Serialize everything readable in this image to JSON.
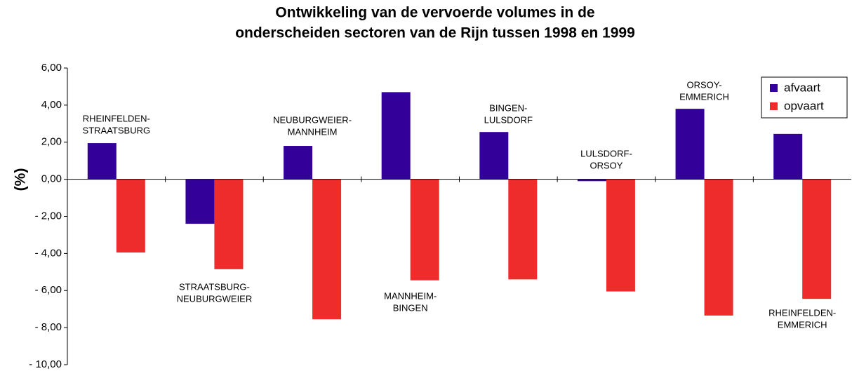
{
  "chart_data": {
    "type": "bar",
    "title": [
      "Ontwikkeling van de vervoerde volumes in de",
      "onderscheiden sectoren van de Rijn tussen 1998 en 1999"
    ],
    "y_label": "(%)",
    "categories": [
      [
        "RHEINFELDEN-",
        "STRAATSBURG"
      ],
      [
        "STRAATSBURG-",
        "NEUBURGWEIER"
      ],
      [
        "NEUBURGWEIER-",
        "MANNHEIM"
      ],
      [
        "MANNHEIM-",
        "BINGEN"
      ],
      [
        "BINGEN-",
        "LULSDORF"
      ],
      [
        "LULSDORF-",
        "ORSOY"
      ],
      [
        "ORSOY-",
        "EMMERICH"
      ],
      [
        "RHEINFELDEN-",
        "EMMERICH"
      ]
    ],
    "series": [
      {
        "name": "afvaart",
        "color": "#330099",
        "values": [
          1.95,
          -2.4,
          1.8,
          4.7,
          2.55,
          -0.1,
          3.8,
          2.45
        ]
      },
      {
        "name": "opvaart",
        "color": "#ee2c2c",
        "values": [
          -3.95,
          -4.85,
          -7.55,
          -5.45,
          -5.4,
          -6.05,
          -7.35,
          -6.45
        ]
      }
    ],
    "ylim": [
      -10,
      6
    ],
    "yticks": [
      {
        "value": 6,
        "label": "6,00"
      },
      {
        "value": 4,
        "label": "4,00"
      },
      {
        "value": 2,
        "label": "2,00"
      },
      {
        "value": 0,
        "label": "0,00"
      },
      {
        "value": -2,
        "label": "- 2,00"
      },
      {
        "value": -4,
        "label": "- 4,00"
      },
      {
        "value": -6,
        "label": "- 6,00"
      },
      {
        "value": -8,
        "label": "- 8,00"
      },
      {
        "value": -10,
        "label": "- 10,00"
      }
    ],
    "legend": "upper right"
  }
}
